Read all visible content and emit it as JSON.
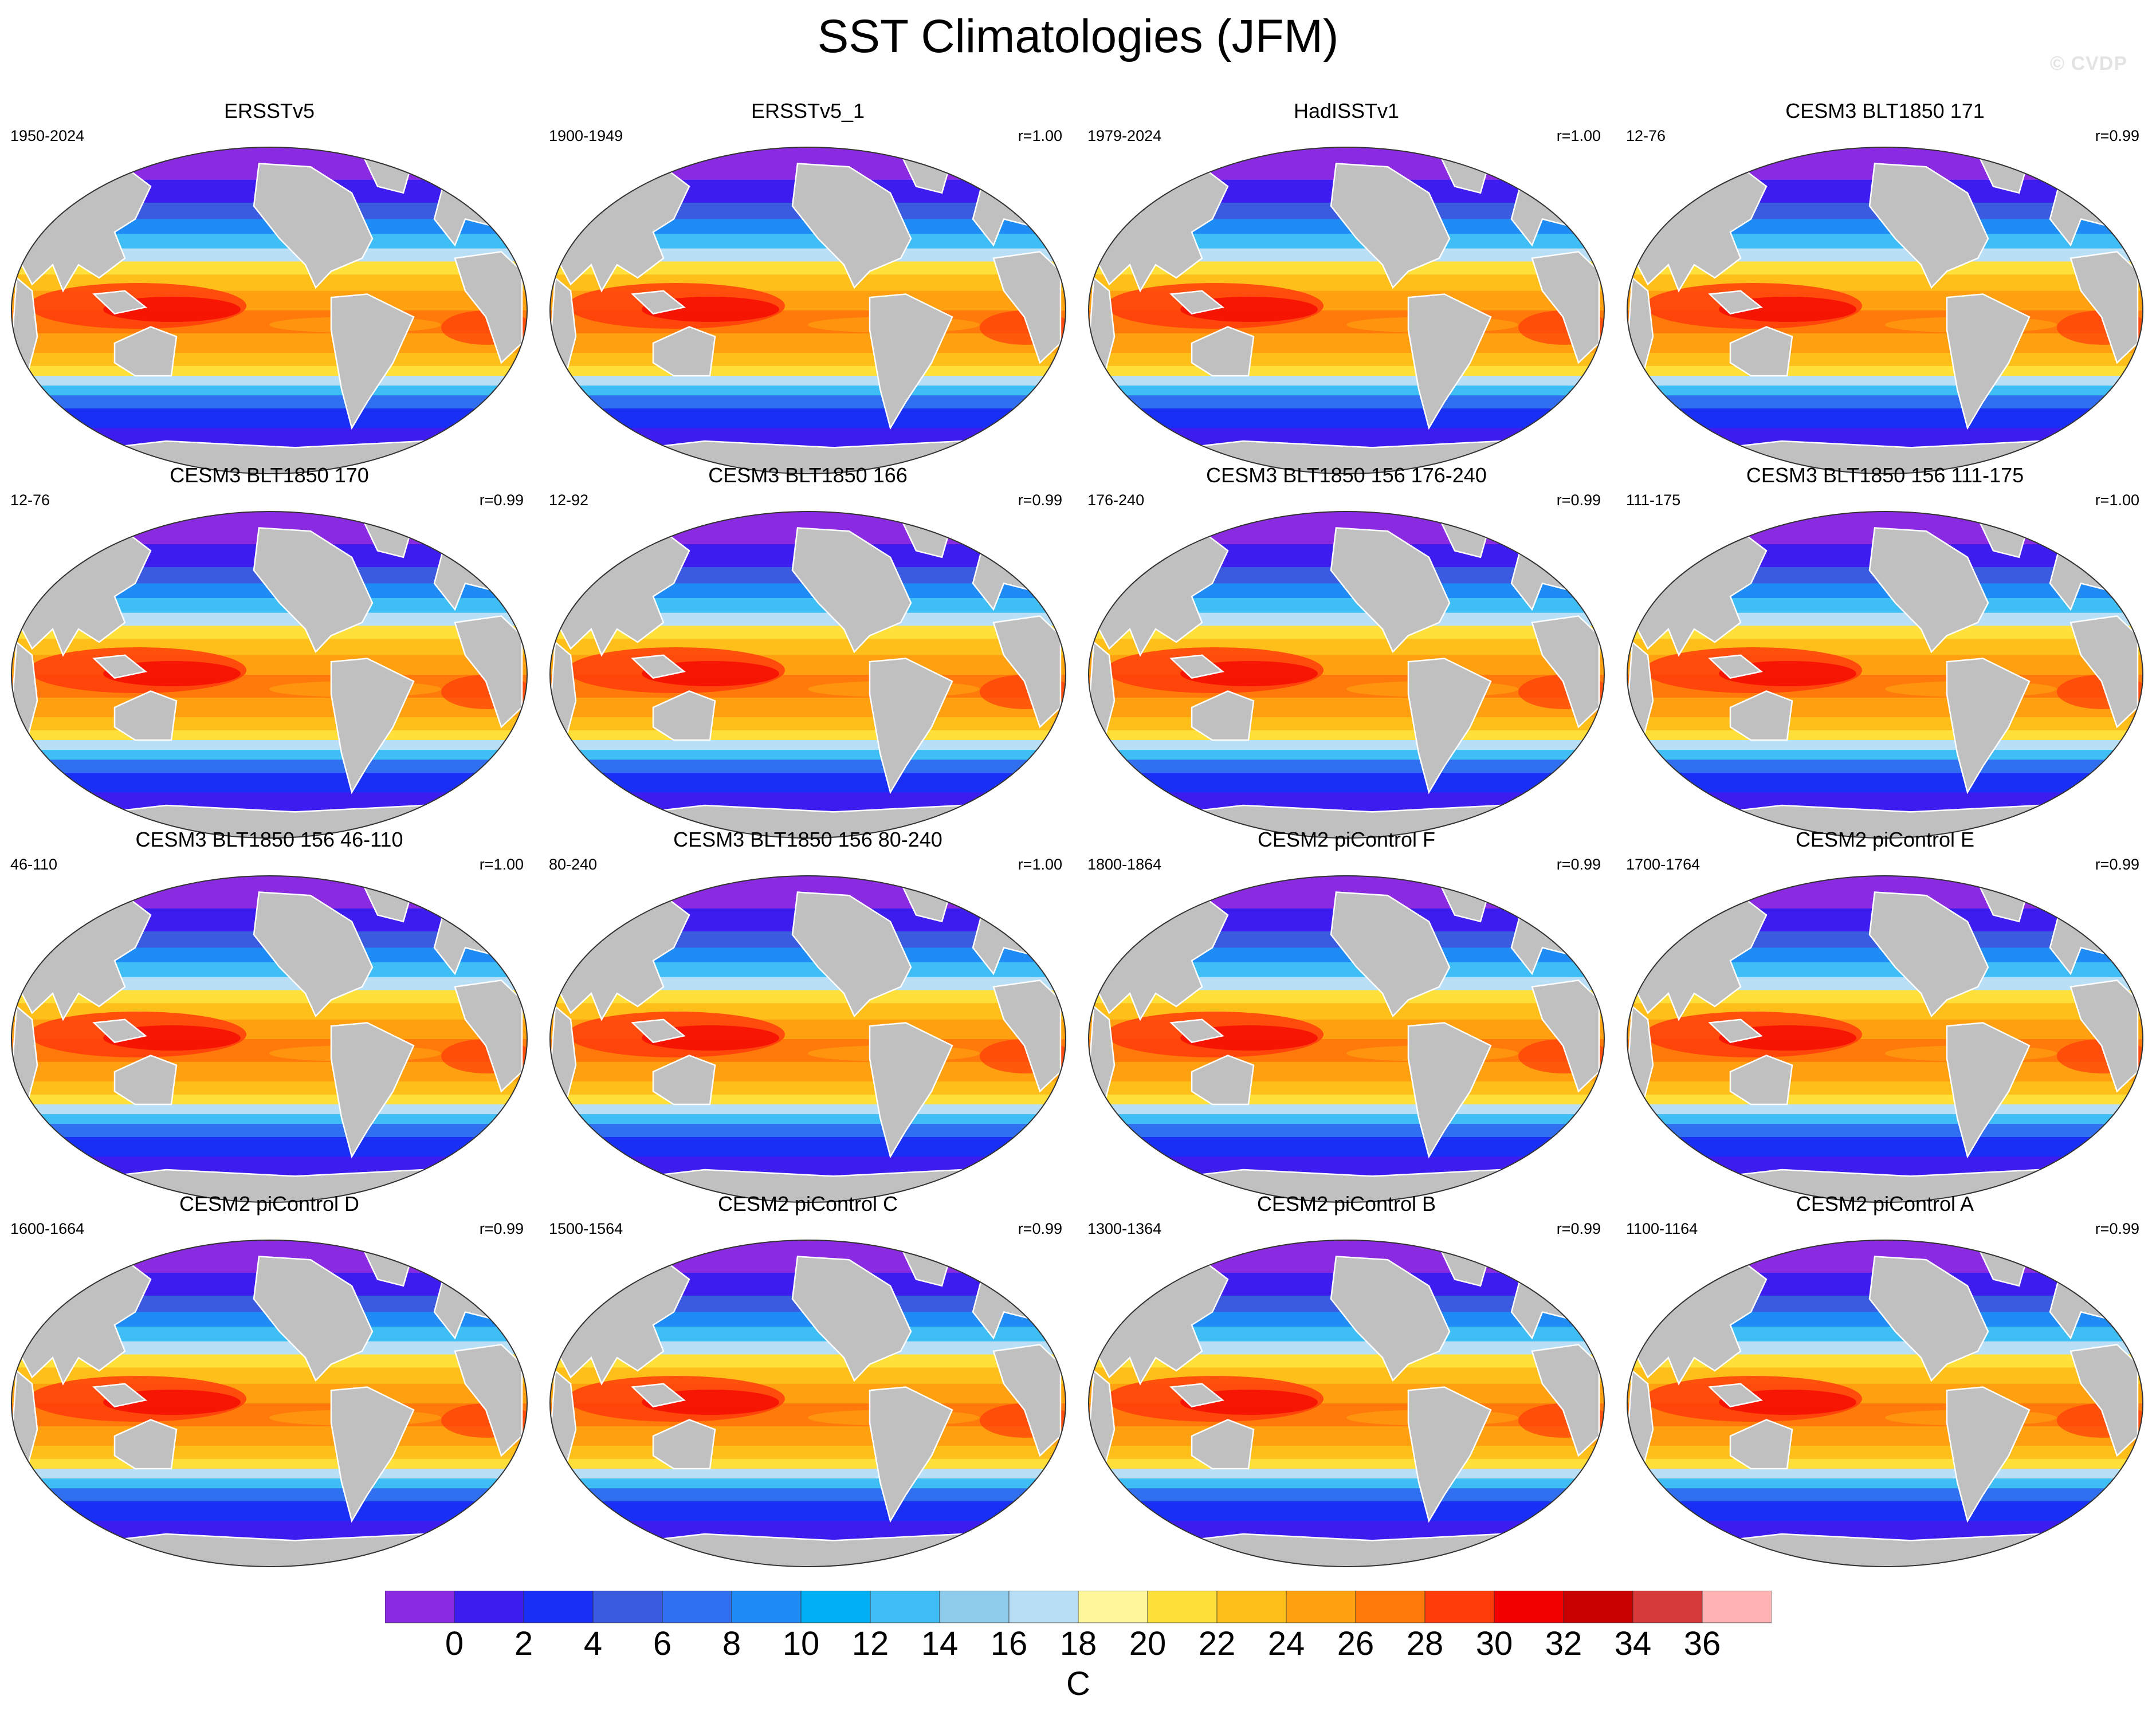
{
  "title": "SST Climatologies (JFM)",
  "watermark": "© CVDP",
  "panels": [
    {
      "name": "ERSSTv5",
      "years": "1950-2024",
      "r": ""
    },
    {
      "name": "ERSSTv5_1",
      "years": "1900-1949",
      "r": "r=1.00"
    },
    {
      "name": "HadISSTv1",
      "years": "1979-2024",
      "r": "r=1.00"
    },
    {
      "name": "CESM3 BLT1850 171",
      "years": "12-76",
      "r": "r=0.99"
    },
    {
      "name": "CESM3 BLT1850 170",
      "years": "12-76",
      "r": "r=0.99"
    },
    {
      "name": "CESM3 BLT1850 166",
      "years": "12-92",
      "r": "r=0.99"
    },
    {
      "name": "CESM3 BLT1850 156 176-240",
      "years": "176-240",
      "r": "r=0.99"
    },
    {
      "name": "CESM3 BLT1850 156 111-175",
      "years": "111-175",
      "r": "r=1.00"
    },
    {
      "name": "CESM3 BLT1850 156 46-110",
      "years": "46-110",
      "r": "r=1.00"
    },
    {
      "name": "CESM3 BLT1850 156 80-240",
      "years": "80-240",
      "r": "r=1.00"
    },
    {
      "name": "CESM2 piControl F",
      "years": "1800-1864",
      "r": "r=0.99"
    },
    {
      "name": "CESM2 piControl E",
      "years": "1700-1764",
      "r": "r=0.99"
    },
    {
      "name": "CESM2 piControl D",
      "years": "1600-1664",
      "r": "r=0.99"
    },
    {
      "name": "CESM2 piControl C",
      "years": "1500-1564",
      "r": "r=0.99"
    },
    {
      "name": "CESM2 piControl B",
      "years": "1300-1364",
      "r": "r=0.99"
    },
    {
      "name": "CESM2 piControl A",
      "years": "1100-1164",
      "r": "r=0.99"
    }
  ],
  "colorbar": {
    "unit": "C",
    "colors": [
      "#8a2be2",
      "#3d1cf0",
      "#1a2ff5",
      "#3a5ae0",
      "#2f6ff0",
      "#1f8cf5",
      "#00b0f5",
      "#3fbef5",
      "#8ecbeb",
      "#b8dff5",
      "#fff59a",
      "#ffe03a",
      "#ffbf1a",
      "#ffa010",
      "#ff7a0a",
      "#ff3c0a",
      "#f20000",
      "#c80000",
      "#d63a3a",
      "#ffb3b3"
    ],
    "ticks": [
      "0",
      "2",
      "4",
      "6",
      "8",
      "10",
      "12",
      "14",
      "16",
      "18",
      "20",
      "22",
      "24",
      "26",
      "28",
      "30",
      "32",
      "34",
      "36"
    ]
  },
  "land_color": "#c0c0c0"
}
